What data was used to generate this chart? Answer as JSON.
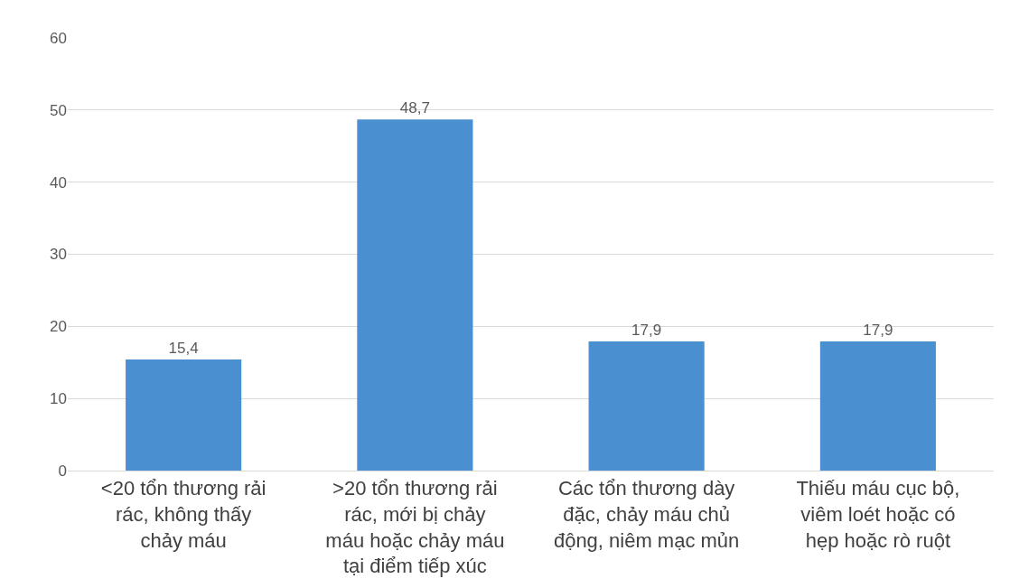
{
  "chart_data": {
    "type": "bar",
    "categories": [
      "<20 tổn thương rải rác, không thấy chảy máu",
      ">20 tổn thương rải rác, mới bị chảy máu hoặc chảy máu tại điểm tiếp xúc",
      "Các tổn thương dày đặc, chảy máu chủ động, niêm mạc mủn",
      "Thiếu máu cục bộ, viêm loét hoặc có hẹp hoặc rò ruột"
    ],
    "values": [
      15.4,
      48.7,
      17.9,
      17.9
    ],
    "value_labels": [
      "15,4",
      "48,7",
      "17,9",
      "17,9"
    ],
    "color": "#4a90d0",
    "ylim": [
      0,
      60
    ],
    "yticks": [
      0,
      10,
      20,
      30,
      40,
      50,
      60
    ],
    "grid": "y"
  }
}
